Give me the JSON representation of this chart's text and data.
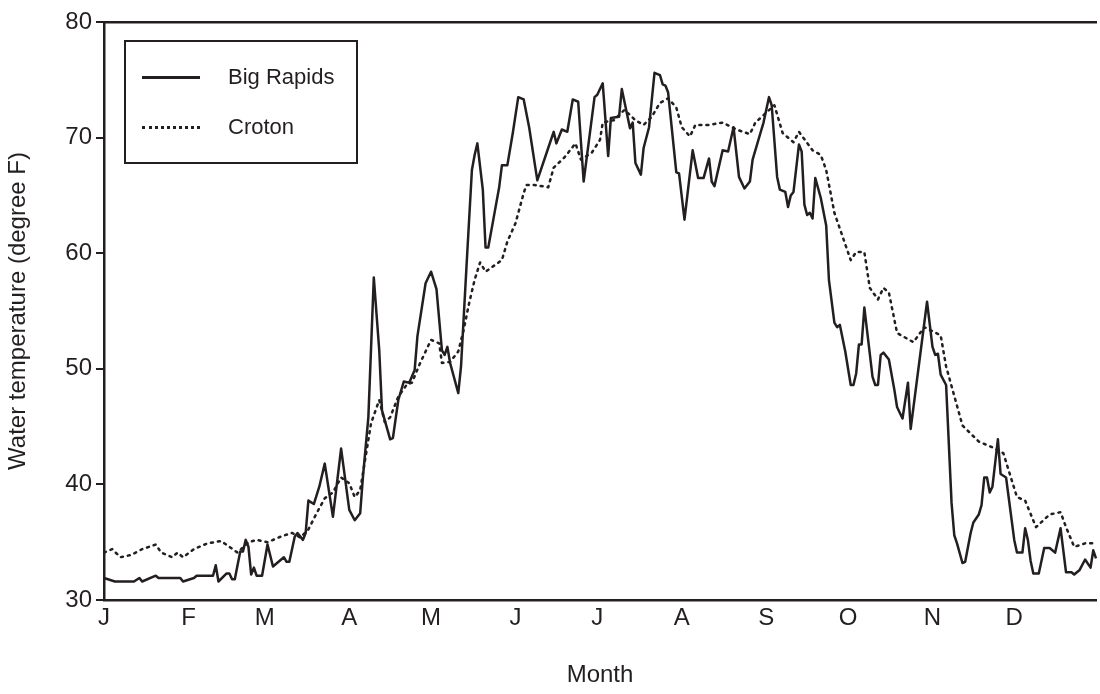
{
  "chart_data": {
    "type": "line",
    "xlabel": "Month",
    "ylabel": "Water temperature (degree F)",
    "ylim": [
      30,
      80
    ],
    "yticks": [
      30,
      40,
      50,
      60,
      70,
      80
    ],
    "grid": false,
    "legend": "top left",
    "marker": "none",
    "categories": [
      "J",
      null,
      null,
      null,
      null,
      null,
      null,
      null,
      null,
      null,
      null,
      null,
      null,
      null,
      null,
      null,
      null,
      null,
      null,
      null,
      null,
      null,
      null,
      null,
      null,
      null,
      null,
      null,
      null,
      null,
      null,
      "F",
      null,
      null,
      null,
      null,
      null,
      null,
      null,
      null,
      null,
      null,
      null,
      null,
      null,
      null,
      null,
      null,
      null,
      null,
      null,
      null,
      null,
      null,
      null,
      null,
      null,
      null,
      null,
      "M",
      null,
      null,
      null,
      null,
      null,
      null,
      null,
      null,
      null,
      null,
      null,
      null,
      null,
      null,
      null,
      null,
      null,
      null,
      null,
      null,
      null,
      null,
      null,
      null,
      null,
      null,
      null,
      null,
      null,
      null,
      "A",
      null,
      null,
      null,
      null,
      null,
      null,
      null,
      null,
      null,
      null,
      null,
      null,
      null,
      null,
      null,
      null,
      null,
      null,
      null,
      null,
      null,
      null,
      null,
      null,
      null,
      null,
      null,
      null,
      null,
      "M",
      null,
      null,
      null,
      null,
      null,
      null,
      null,
      null,
      null,
      null,
      null,
      null,
      null,
      null,
      null,
      null,
      null,
      null,
      null,
      null,
      null,
      null,
      null,
      null,
      null,
      null,
      null,
      null,
      null,
      null,
      "J",
      null,
      null,
      null,
      null,
      null,
      null,
      null,
      null,
      null,
      null,
      null,
      null,
      null,
      null,
      null,
      null,
      null,
      null,
      null,
      null,
      null,
      null,
      null,
      null,
      null,
      null,
      null,
      null,
      null,
      "J",
      null,
      null,
      null,
      null,
      null,
      null,
      null,
      null,
      null,
      null,
      null,
      null,
      null,
      null,
      null,
      null,
      null,
      null,
      null,
      null,
      null,
      null,
      null,
      null,
      null,
      null,
      null,
      null,
      null,
      null,
      "A",
      null,
      null,
      null,
      null,
      null,
      null,
      null,
      null,
      null,
      null,
      null,
      null,
      null,
      null,
      null,
      null,
      null,
      null,
      null,
      null,
      null,
      null,
      null,
      null,
      null,
      null,
      null,
      null,
      null,
      null,
      "S",
      null,
      null,
      null,
      null,
      null,
      null,
      null,
      null,
      null,
      null,
      null,
      null,
      null,
      null,
      null,
      null,
      null,
      null,
      null,
      null,
      null,
      null,
      null,
      null,
      null,
      null,
      null,
      null,
      null,
      "O",
      null,
      null,
      null,
      null,
      null,
      null,
      null,
      null,
      null,
      null,
      null,
      null,
      null,
      null,
      null,
      null,
      null,
      null,
      null,
      null,
      null,
      null,
      null,
      null,
      null,
      null,
      null,
      null,
      null,
      null,
      "N",
      null,
      null,
      null,
      null,
      null,
      null,
      null,
      null,
      null,
      null,
      null,
      null,
      null,
      null,
      null,
      null,
      null,
      null,
      null,
      null,
      null,
      null,
      null,
      null,
      null,
      null,
      null,
      null,
      null,
      "D",
      null,
      null,
      null,
      null,
      null,
      null,
      null,
      null,
      null,
      null,
      null,
      null,
      null,
      null,
      null,
      null,
      null,
      null,
      null,
      null,
      null,
      null,
      null,
      null,
      null,
      null,
      null,
      null,
      null,
      null
    ],
    "series": [
      {
        "name": "Big Rapids",
        "color": "#231f20",
        "line_style": "solid",
        "values": [
          31.9,
          null,
          null,
          null,
          31.6,
          null,
          null,
          null,
          null,
          null,
          null,
          31.6,
          null,
          31.9,
          31.6,
          null,
          null,
          null,
          null,
          32.1,
          31.9,
          null,
          null,
          null,
          null,
          null,
          null,
          null,
          31.9,
          31.6,
          null,
          null,
          null,
          31.9,
          32.1,
          null,
          null,
          null,
          null,
          null,
          32.1,
          33.0,
          31.6,
          null,
          null,
          32.3,
          32.3,
          31.8,
          31.8,
          33.0,
          34.2,
          34.2,
          35.2,
          34.6,
          32.2,
          32.8,
          32.1,
          null,
          32.1,
          null,
          34.8,
          null,
          32.9,
          null,
          null,
          null,
          33.7,
          33.3,
          33.3,
          null,
          35.5,
          35.8,
          null,
          35.2,
          35.8,
          38.6,
          null,
          38.3,
          null,
          39.8,
          null,
          41.8,
          null,
          null,
          37.2,
          null,
          null,
          43.1,
          null,
          null,
          37.8,
          null,
          36.9,
          null,
          37.5,
          40.6,
          null,
          45.8,
          null,
          57.9,
          null,
          51.6,
          46.4,
          null,
          null,
          43.9,
          44.0,
          null,
          47.3,
          null,
          48.9,
          null,
          48.8,
          null,
          49.9,
          52.8,
          null,
          null,
          57.4,
          null,
          58.4,
          null,
          56.9,
          null,
          51.6,
          51.2,
          51.9,
          50.5,
          null,
          null,
          47.9,
          50.2,
          null,
          58.8,
          null,
          67.2,
          68.5,
          69.5,
          null,
          65.5,
          60.5,
          60.5,
          null,
          63.1,
          null,
          65.7,
          67.6,
          null,
          67.6,
          null,
          70.4,
          null,
          73.5,
          null,
          73.3,
          null,
          70.9,
          null,
          null,
          66.3,
          null,
          null,
          null,
          69.1,
          null,
          70.5,
          69.5,
          null,
          70.7,
          null,
          70.5,
          null,
          73.3,
          null,
          73.1,
          null,
          66.2,
          null,
          null,
          null,
          73.5,
          73.7,
          null,
          74.7,
          null,
          68.4,
          71.7,
          null,
          null,
          71.8,
          74.2,
          null,
          null,
          70.8,
          71.3,
          67.8,
          null,
          66.8,
          69.1,
          null,
          70.9,
          null,
          75.6,
          null,
          75.4,
          74.6,
          74.5,
          73.9,
          null,
          null,
          67.0,
          66.9,
          null,
          62.9,
          null,
          null,
          68.9,
          null,
          66.5,
          null,
          66.5,
          null,
          68.2,
          66.2,
          65.8,
          null,
          null,
          68.9,
          null,
          68.8,
          null,
          70.9,
          null,
          66.6,
          null,
          65.6,
          null,
          66.2,
          68.1,
          null,
          null,
          null,
          71.3,
          null,
          73.5,
          72.8,
          null,
          66.6,
          65.5,
          null,
          65.3,
          64.0,
          65.0,
          65.3,
          null,
          69.4,
          68.8,
          64.2,
          63.3,
          63.5,
          63.0,
          66.5,
          null,
          64.8,
          null,
          62.4,
          57.7,
          null,
          54.0,
          53.6,
          53.8,
          null,
          51.5,
          null,
          48.6,
          48.6,
          49.6,
          52.1,
          52.1,
          55.3,
          null,
          null,
          49.3,
          48.6,
          48.6,
          51.2,
          51.4,
          null,
          50.8,
          null,
          48.2,
          46.7,
          null,
          45.7,
          null,
          48.8,
          44.8,
          null,
          null,
          null,
          null,
          null,
          55.8,
          null,
          51.9,
          51.2,
          51.3,
          49.5,
          null,
          48.6,
          null,
          38.4,
          35.6,
          34.9,
          null,
          33.2,
          33.3,
          null,
          35.8,
          36.7,
          null,
          37.4,
          38.2,
          40.6,
          40.6,
          39.3,
          39.8,
          null,
          43.9,
          40.9,
          null,
          40.6,
          null,
          null,
          35.2,
          34.1,
          null,
          34.1,
          36.2,
          35.2,
          33.4,
          32.3,
          null,
          32.3,
          null,
          34.5,
          null,
          34.5,
          null,
          34.1,
          null,
          36.2,
          null,
          32.4,
          null,
          32.4,
          32.2,
          32.4,
          32.6,
          null,
          33.5,
          null,
          32.8,
          34.3,
          33.6
        ]
      },
      {
        "name": "Croton",
        "color": "#231f20",
        "line_style": "dotted",
        "values": [
          34.1,
          null,
          null,
          34.4,
          null,
          null,
          33.7,
          null,
          null,
          null,
          33.9,
          null,
          null,
          null,
          34.4,
          null,
          null,
          null,
          null,
          34.8,
          null,
          34.1,
          null,
          null,
          null,
          33.7,
          null,
          34.1,
          null,
          33.7,
          null,
          null,
          null,
          34.4,
          null,
          null,
          null,
          null,
          34.9,
          null,
          null,
          null,
          null,
          35.1,
          null,
          null,
          34.6,
          null,
          null,
          34.1,
          null,
          null,
          null,
          35.0,
          null,
          null,
          35.2,
          null,
          null,
          null,
          35.0,
          null,
          null,
          null,
          null,
          35.5,
          null,
          null,
          null,
          35.8,
          null,
          null,
          35.4,
          null,
          null,
          36.1,
          null,
          null,
          37.5,
          null,
          null,
          38.8,
          null,
          null,
          39.3,
          null,
          null,
          40.6,
          null,
          null,
          40.1,
          null,
          38.9,
          null,
          39.5,
          null,
          42.4,
          null,
          45.3,
          null,
          null,
          47.3,
          null,
          45.4,
          null,
          45.8,
          null,
          null,
          47.6,
          null,
          null,
          48.6,
          null,
          48.8,
          null,
          null,
          50.5,
          null,
          null,
          null,
          52.5,
          null,
          null,
          52.2,
          50.5,
          null,
          null,
          50.6,
          null,
          null,
          51.5,
          null,
          53.4,
          null,
          55.7,
          null,
          57.7,
          null,
          59.2,
          null,
          58.4,
          null,
          null,
          null,
          null,
          null,
          59.4,
          null,
          61.0,
          null,
          null,
          62.6,
          null,
          null,
          65.2,
          65.9,
          null,
          null,
          65.9,
          null,
          null,
          null,
          null,
          65.7,
          null,
          67.4,
          null,
          null,
          null,
          68.3,
          null,
          null,
          null,
          69.5,
          null,
          68.1,
          null,
          null,
          null,
          68.7,
          null,
          null,
          69.8,
          71.3,
          null,
          null,
          null,
          71.5,
          null,
          null,
          null,
          72.4,
          null,
          null,
          null,
          71.5,
          null,
          null,
          71.1,
          null,
          null,
          71.8,
          null,
          null,
          73.0,
          null,
          null,
          73.4,
          null,
          null,
          72.6,
          null,
          70.9,
          null,
          null,
          70.1,
          null,
          71.1,
          null,
          null,
          null,
          null,
          71.1,
          null,
          null,
          null,
          null,
          71.3,
          null,
          null,
          null,
          null,
          70.7,
          null,
          null,
          null,
          null,
          70.3,
          null,
          71.3,
          null,
          null,
          null,
          null,
          null,
          null,
          72.8,
          null,
          null,
          70.4,
          null,
          null,
          null,
          69.6,
          null,
          70.5,
          null,
          null,
          null,
          null,
          68.9,
          null,
          null,
          68.5,
          null,
          67.2,
          null,
          null,
          63.5,
          null,
          null,
          null,
          null,
          null,
          59.4,
          null,
          60.1,
          null,
          null,
          60.1,
          null,
          57.0,
          null,
          null,
          56.0,
          null,
          57.0,
          null,
          56.6,
          null,
          null,
          53.1,
          null,
          null,
          null,
          null,
          null,
          52.3,
          null,
          null,
          null,
          53.6,
          null,
          null,
          null,
          null,
          null,
          52.9,
          null,
          50.2,
          null,
          null,
          null,
          null,
          null,
          45.1,
          null,
          null,
          null,
          null,
          null,
          43.7,
          null,
          null,
          null,
          null,
          43.2,
          null,
          null,
          null,
          42.7,
          null,
          null,
          null,
          null,
          38.9,
          null,
          null,
          38.6,
          null,
          null,
          null,
          36.3,
          null,
          null,
          null,
          null,
          37.4,
          null,
          null,
          null,
          37.6,
          null,
          36.3,
          null,
          null,
          34.6,
          null,
          null,
          null,
          34.9,
          null,
          null,
          null,
          34.9
        ]
      }
    ]
  }
}
